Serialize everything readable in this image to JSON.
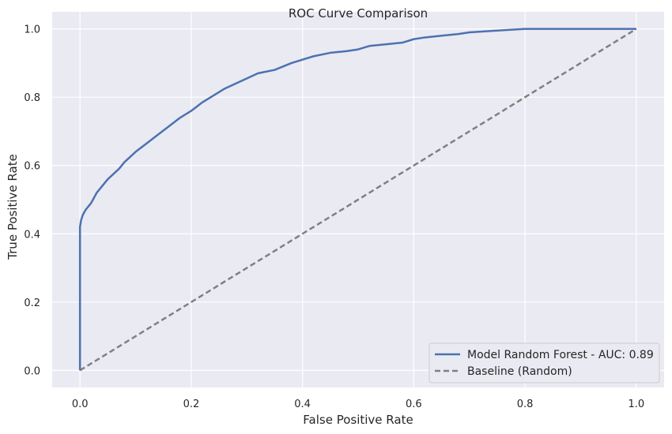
{
  "chart_data": {
    "type": "line",
    "title": "ROC Curve Comparison",
    "xlabel": "False Positive Rate",
    "ylabel": "True Positive Rate",
    "xlim": [
      -0.05,
      1.05
    ],
    "ylim": [
      -0.05,
      1.05
    ],
    "xticks": [
      0.0,
      0.2,
      0.4,
      0.6,
      0.8,
      1.0
    ],
    "yticks": [
      0.0,
      0.2,
      0.4,
      0.6,
      0.8,
      1.0
    ],
    "tick_labels": [
      "0.0",
      "0.2",
      "0.4",
      "0.6",
      "0.8",
      "1.0"
    ],
    "grid": true,
    "legend_position": "lower right",
    "series": [
      {
        "name": "Model Random Forest - AUC: 0.89",
        "color": "#4c72b0",
        "style": "solid",
        "x": [
          0.0,
          0.0,
          0.002,
          0.005,
          0.01,
          0.015,
          0.02,
          0.03,
          0.04,
          0.05,
          0.06,
          0.07,
          0.08,
          0.09,
          0.1,
          0.12,
          0.14,
          0.16,
          0.18,
          0.2,
          0.22,
          0.24,
          0.26,
          0.28,
          0.3,
          0.32,
          0.35,
          0.38,
          0.4,
          0.42,
          0.45,
          0.48,
          0.5,
          0.52,
          0.55,
          0.58,
          0.6,
          0.62,
          0.65,
          0.68,
          0.7,
          0.75,
          0.8,
          0.85,
          0.9,
          0.95,
          1.0
        ],
        "y": [
          0.0,
          0.42,
          0.44,
          0.455,
          0.47,
          0.48,
          0.49,
          0.52,
          0.54,
          0.56,
          0.575,
          0.59,
          0.61,
          0.625,
          0.64,
          0.665,
          0.69,
          0.715,
          0.74,
          0.76,
          0.785,
          0.805,
          0.825,
          0.84,
          0.855,
          0.87,
          0.88,
          0.9,
          0.91,
          0.92,
          0.93,
          0.935,
          0.94,
          0.95,
          0.955,
          0.96,
          0.97,
          0.975,
          0.98,
          0.985,
          0.99,
          0.995,
          1.0,
          1.0,
          1.0,
          1.0,
          1.0
        ]
      },
      {
        "name": "Baseline (Random)",
        "color": "#808080",
        "style": "dashed",
        "x": [
          0.0,
          1.0
        ],
        "y": [
          0.0,
          1.0
        ]
      }
    ]
  }
}
